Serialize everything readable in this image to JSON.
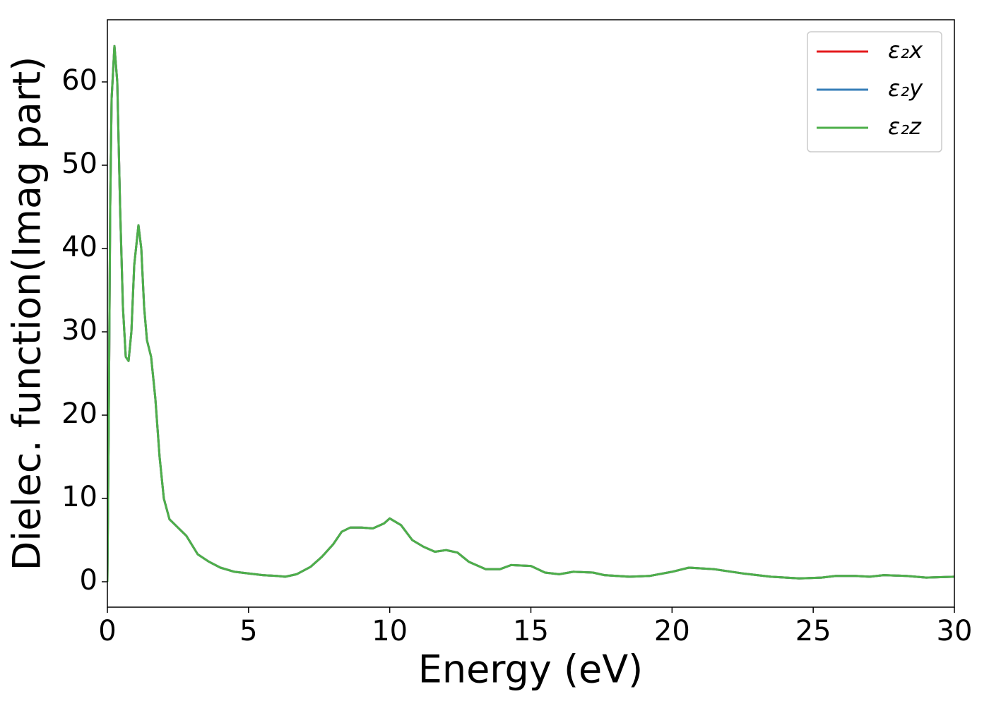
{
  "chart_data": {
    "type": "line",
    "xlabel": "Energy (eV)",
    "ylabel": "Dielec. function(Imag part)",
    "x": [
      0,
      0.05,
      0.1,
      0.15,
      0.25,
      0.35,
      0.45,
      0.55,
      0.65,
      0.75,
      0.85,
      0.95,
      1.1,
      1.2,
      1.3,
      1.4,
      1.55,
      1.7,
      1.85,
      2.0,
      2.2,
      2.5,
      2.8,
      3.2,
      3.6,
      4.0,
      4.5,
      5.0,
      5.5,
      6.0,
      6.3,
      6.7,
      7.2,
      7.6,
      8.0,
      8.3,
      8.6,
      9.0,
      9.4,
      9.8,
      10.0,
      10.4,
      10.8,
      11.2,
      11.6,
      12.0,
      12.4,
      12.8,
      13.4,
      13.9,
      14.3,
      15.0,
      15.5,
      16.0,
      16.5,
      17.2,
      17.6,
      18.5,
      19.2,
      20.0,
      20.6,
      21.5,
      22.5,
      23.5,
      24.5,
      25.3,
      25.8,
      26.5,
      27.0,
      27.5,
      28.3,
      29.0,
      30.0
    ],
    "series": [
      {
        "name": "ε₂x",
        "color": "#e41a1c",
        "values": [
          0,
          20,
          45,
          58,
          64.3,
          60,
          45,
          33,
          27,
          26.5,
          30,
          38,
          42.8,
          40,
          33,
          29,
          27,
          22,
          15,
          10,
          7.5,
          6.5,
          5.5,
          3.3,
          2.4,
          1.7,
          1.2,
          1.0,
          0.8,
          0.7,
          0.6,
          0.9,
          1.8,
          3.0,
          4.5,
          6.0,
          6.5,
          6.5,
          6.4,
          7.0,
          7.6,
          6.8,
          5.0,
          4.2,
          3.6,
          3.8,
          3.5,
          2.4,
          1.5,
          1.5,
          2.0,
          1.9,
          1.1,
          0.9,
          1.2,
          1.1,
          0.8,
          0.6,
          0.7,
          1.2,
          1.7,
          1.5,
          1.0,
          0.6,
          0.4,
          0.5,
          0.7,
          0.7,
          0.6,
          0.8,
          0.7,
          0.5,
          0.6
        ]
      },
      {
        "name": "ε₂y",
        "color": "#377eb8",
        "values": [
          0,
          20,
          45,
          58,
          64.3,
          60,
          45,
          33,
          27,
          26.5,
          30,
          38,
          42.8,
          40,
          33,
          29,
          27,
          22,
          15,
          10,
          7.5,
          6.5,
          5.5,
          3.3,
          2.4,
          1.7,
          1.2,
          1.0,
          0.8,
          0.7,
          0.6,
          0.9,
          1.8,
          3.0,
          4.5,
          6.0,
          6.5,
          6.5,
          6.4,
          7.0,
          7.6,
          6.8,
          5.0,
          4.2,
          3.6,
          3.8,
          3.5,
          2.4,
          1.5,
          1.5,
          2.0,
          1.9,
          1.1,
          0.9,
          1.2,
          1.1,
          0.8,
          0.6,
          0.7,
          1.2,
          1.7,
          1.5,
          1.0,
          0.6,
          0.4,
          0.5,
          0.7,
          0.7,
          0.6,
          0.8,
          0.7,
          0.5,
          0.6
        ]
      },
      {
        "name": "ε₂z",
        "color": "#4daf4a",
        "values": [
          0,
          20,
          45,
          58,
          64.3,
          60,
          45,
          33,
          27,
          26.5,
          30,
          38,
          42.8,
          40,
          33,
          29,
          27,
          22,
          15,
          10,
          7.5,
          6.5,
          5.5,
          3.3,
          2.4,
          1.7,
          1.2,
          1.0,
          0.8,
          0.7,
          0.6,
          0.9,
          1.8,
          3.0,
          4.5,
          6.0,
          6.5,
          6.5,
          6.4,
          7.0,
          7.6,
          6.8,
          5.0,
          4.2,
          3.6,
          3.8,
          3.5,
          2.4,
          1.5,
          1.5,
          2.0,
          1.9,
          1.1,
          0.9,
          1.2,
          1.1,
          0.8,
          0.6,
          0.7,
          1.2,
          1.7,
          1.5,
          1.0,
          0.6,
          0.4,
          0.5,
          0.7,
          0.7,
          0.6,
          0.8,
          0.7,
          0.5,
          0.6
        ]
      }
    ],
    "xlim": [
      0,
      30
    ],
    "xticks": [
      0,
      5,
      10,
      15,
      20,
      25,
      30
    ],
    "ylim": [
      -3.05,
      67.46
    ],
    "yticks": [
      0,
      10,
      20,
      30,
      40,
      50,
      60
    ],
    "legend": "upper right",
    "grid": false
  }
}
